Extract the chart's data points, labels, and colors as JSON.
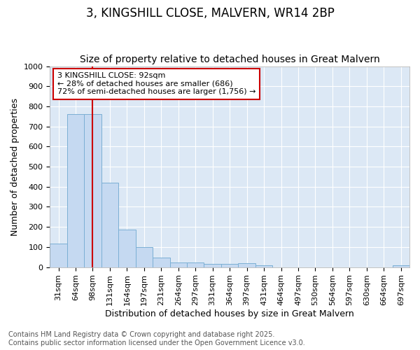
{
  "title": "3, KINGSHILL CLOSE, MALVERN, WR14 2BP",
  "subtitle": "Size of property relative to detached houses in Great Malvern",
  "xlabel": "Distribution of detached houses by size in Great Malvern",
  "ylabel": "Number of detached properties",
  "categories": [
    "31sqm",
    "64sqm",
    "98sqm",
    "131sqm",
    "164sqm",
    "197sqm",
    "231sqm",
    "264sqm",
    "297sqm",
    "331sqm",
    "364sqm",
    "397sqm",
    "431sqm",
    "464sqm",
    "497sqm",
    "530sqm",
    "564sqm",
    "597sqm",
    "630sqm",
    "664sqm",
    "697sqm"
  ],
  "values": [
    118,
    760,
    760,
    420,
    187,
    98,
    47,
    22,
    22,
    17,
    17,
    18,
    8,
    0,
    0,
    0,
    0,
    0,
    0,
    0,
    8
  ],
  "bar_color": "#c5d9f1",
  "bar_edge_color": "#7bafd4",
  "vline_x": 2,
  "vline_color": "#cc0000",
  "annotation_text": "3 KINGSHILL CLOSE: 92sqm\n← 28% of detached houses are smaller (686)\n72% of semi-detached houses are larger (1,756) →",
  "annotation_box_color": "white",
  "annotation_box_edge_color": "#cc0000",
  "footer_line1": "Contains HM Land Registry data © Crown copyright and database right 2025.",
  "footer_line2": "Contains public sector information licensed under the Open Government Licence v3.0.",
  "ylim": [
    0,
    1000
  ],
  "fig_bg_color": "#ffffff",
  "plot_bg_color": "#dce8f5",
  "grid_color": "#ffffff",
  "title_fontsize": 12,
  "subtitle_fontsize": 10,
  "tick_fontsize": 8,
  "ylabel_fontsize": 9,
  "xlabel_fontsize": 9,
  "footer_fontsize": 7,
  "annotation_fontsize": 8
}
